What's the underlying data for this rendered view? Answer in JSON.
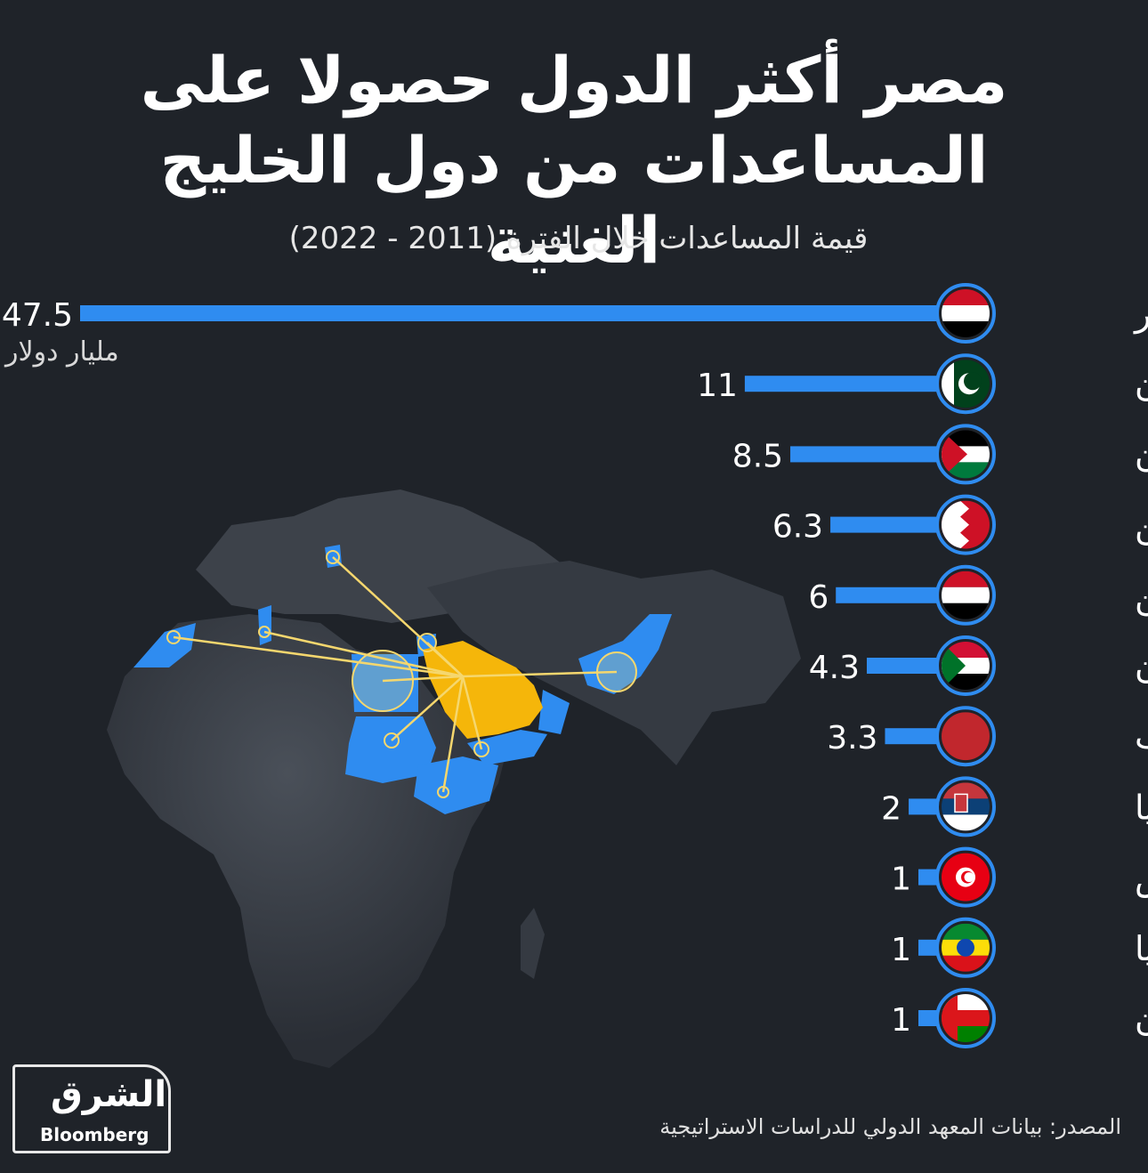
{
  "header": {
    "title_line1": "مصر أكثر الدول حصولا على",
    "title_line2": "المساعدات من دول الخليج الغنية",
    "subtitle": "قيمة المساعدات خلال الفترة (2011 - 2022)"
  },
  "chart_data": {
    "type": "bar",
    "title": "مصر أكثر الدول حصولا على المساعدات من دول الخليج الغنية",
    "subtitle": "قيمة المساعدات خلال الفترة (2011 - 2022)",
    "unit": "مليار دولار",
    "orientation": "horizontal",
    "categories": [
      "مصر",
      "باكستان",
      "الأردن",
      "البحرين",
      "اليمن",
      "السودان",
      "المغرب",
      "صربيا",
      "تونس",
      "إثيوبيا",
      "عُمان"
    ],
    "values": [
      47.5,
      11,
      8.5,
      6.3,
      6,
      4.3,
      3.3,
      2,
      1,
      1,
      1
    ],
    "value_labels": [
      "47.5",
      "11",
      "8.5",
      "6.3",
      "6",
      "4.3",
      "3.3",
      "2",
      "1",
      "1",
      "1"
    ],
    "bar_color": "#2f8cf0",
    "flags": [
      "egypt-flag-icon",
      "pakistan-flag-icon",
      "jordan-flag-icon",
      "bahrain-flag-icon",
      "yemen-flag-icon",
      "sudan-flag-icon",
      "morocco-flag-icon",
      "serbia-flag-icon",
      "tunisia-flag-icon",
      "ethiopia-flag-icon",
      "oman-flag-icon"
    ]
  },
  "colors": {
    "background": "#1f2329",
    "bar": "#2f8cf0",
    "map_land": "#3a3f47",
    "map_recipients": "#2f8cf0",
    "map_gulf": "#f5b60a",
    "connector": "#f5d76e"
  },
  "footer": {
    "source": "المصدر: بيانات المعهد الدولي للدراسات الاستراتيجية",
    "logo_ar": "الشرق",
    "logo_en": "Bloomberg"
  }
}
